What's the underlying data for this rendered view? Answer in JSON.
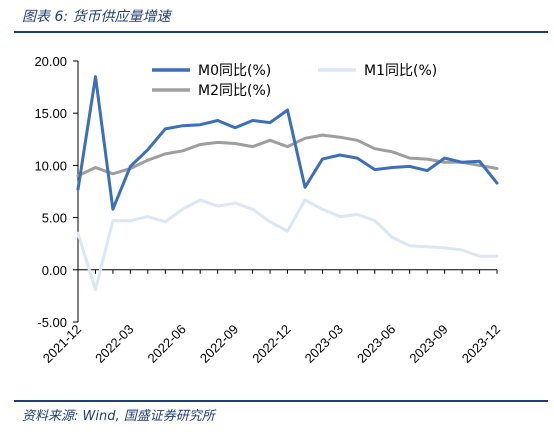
{
  "figure": {
    "title": "图表 6:  货币供应量增速",
    "source": "资料来源:  Wind,  国盛证券研究所"
  },
  "chart_data": {
    "type": "line",
    "x": [
      "2021-12",
      "2022-01",
      "2022-02",
      "2022-03",
      "2022-04",
      "2022-05",
      "2022-06",
      "2022-07",
      "2022-08",
      "2022-09",
      "2022-10",
      "2022-11",
      "2022-12",
      "2023-01",
      "2023-02",
      "2023-03",
      "2023-04",
      "2023-05",
      "2023-06",
      "2023-07",
      "2023-08",
      "2023-09",
      "2023-10",
      "2023-11",
      "2023-12"
    ],
    "x_tick_labels": [
      "2021-12",
      "2022-03",
      "2022-06",
      "2022-09",
      "2022-12",
      "2023-03",
      "2023-06",
      "2023-09",
      "2023-12"
    ],
    "ylim": [
      -5,
      20
    ],
    "y_ticks": [
      "20.00",
      "15.00",
      "10.00",
      "5.00",
      "0.00",
      "-5.00"
    ],
    "y_tick_values": [
      20,
      15,
      10,
      5,
      0,
      -5
    ],
    "grid": false,
    "legend": "top",
    "series": [
      {
        "name": "M0同比(%)",
        "color": "#3b6fba",
        "width": 3,
        "values": [
          7.7,
          18.5,
          5.8,
          9.9,
          11.5,
          13.5,
          13.8,
          13.9,
          14.3,
          13.6,
          14.3,
          14.1,
          15.3,
          7.9,
          10.6,
          11.0,
          10.7,
          9.6,
          9.8,
          9.9,
          9.5,
          10.7,
          10.3,
          10.4,
          8.3
        ]
      },
      {
        "name": "M1同比(%)",
        "color": "#dce6f4",
        "width": 3,
        "values": [
          3.5,
          -1.9,
          4.7,
          4.7,
          5.1,
          4.6,
          5.8,
          6.7,
          6.1,
          6.4,
          5.8,
          4.6,
          3.7,
          6.7,
          5.8,
          5.1,
          5.3,
          4.7,
          3.1,
          2.3,
          2.2,
          2.1,
          1.9,
          1.3,
          1.3
        ]
      },
      {
        "name": "M2同比(%)",
        "color": "#9e9e9e",
        "width": 3,
        "values": [
          9.0,
          9.8,
          9.2,
          9.7,
          10.5,
          11.1,
          11.4,
          12.0,
          12.2,
          12.1,
          11.8,
          12.4,
          11.8,
          12.6,
          12.9,
          12.7,
          12.4,
          11.6,
          11.3,
          10.7,
          10.6,
          10.3,
          10.3,
          10.0,
          9.7
        ]
      }
    ]
  }
}
